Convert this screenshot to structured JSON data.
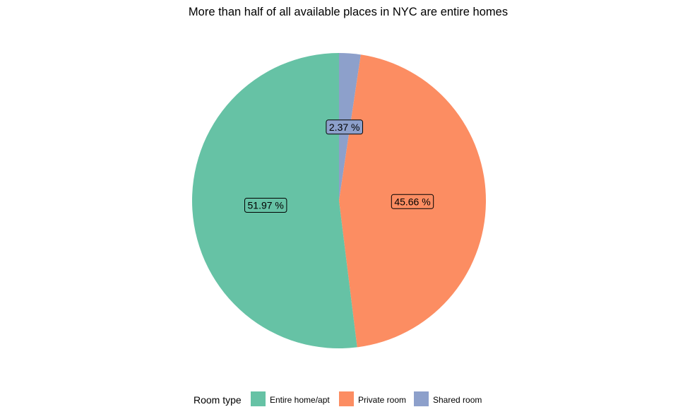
{
  "chart_data": {
    "type": "pie",
    "title": "More than half of all available places in NYC are entire homes",
    "categories": [
      "Entire home/apt",
      "Private room",
      "Shared room"
    ],
    "values": [
      51.97,
      45.66,
      2.37
    ],
    "labels": [
      "51.97 %",
      "45.66 %",
      "2.37 %"
    ],
    "colors": [
      "#66c2a5",
      "#fc8d62",
      "#8da0cb"
    ],
    "legend": {
      "title": "Room type",
      "position": "bottom",
      "entries": [
        "Entire home/apt",
        "Private room",
        "Shared room"
      ]
    }
  }
}
